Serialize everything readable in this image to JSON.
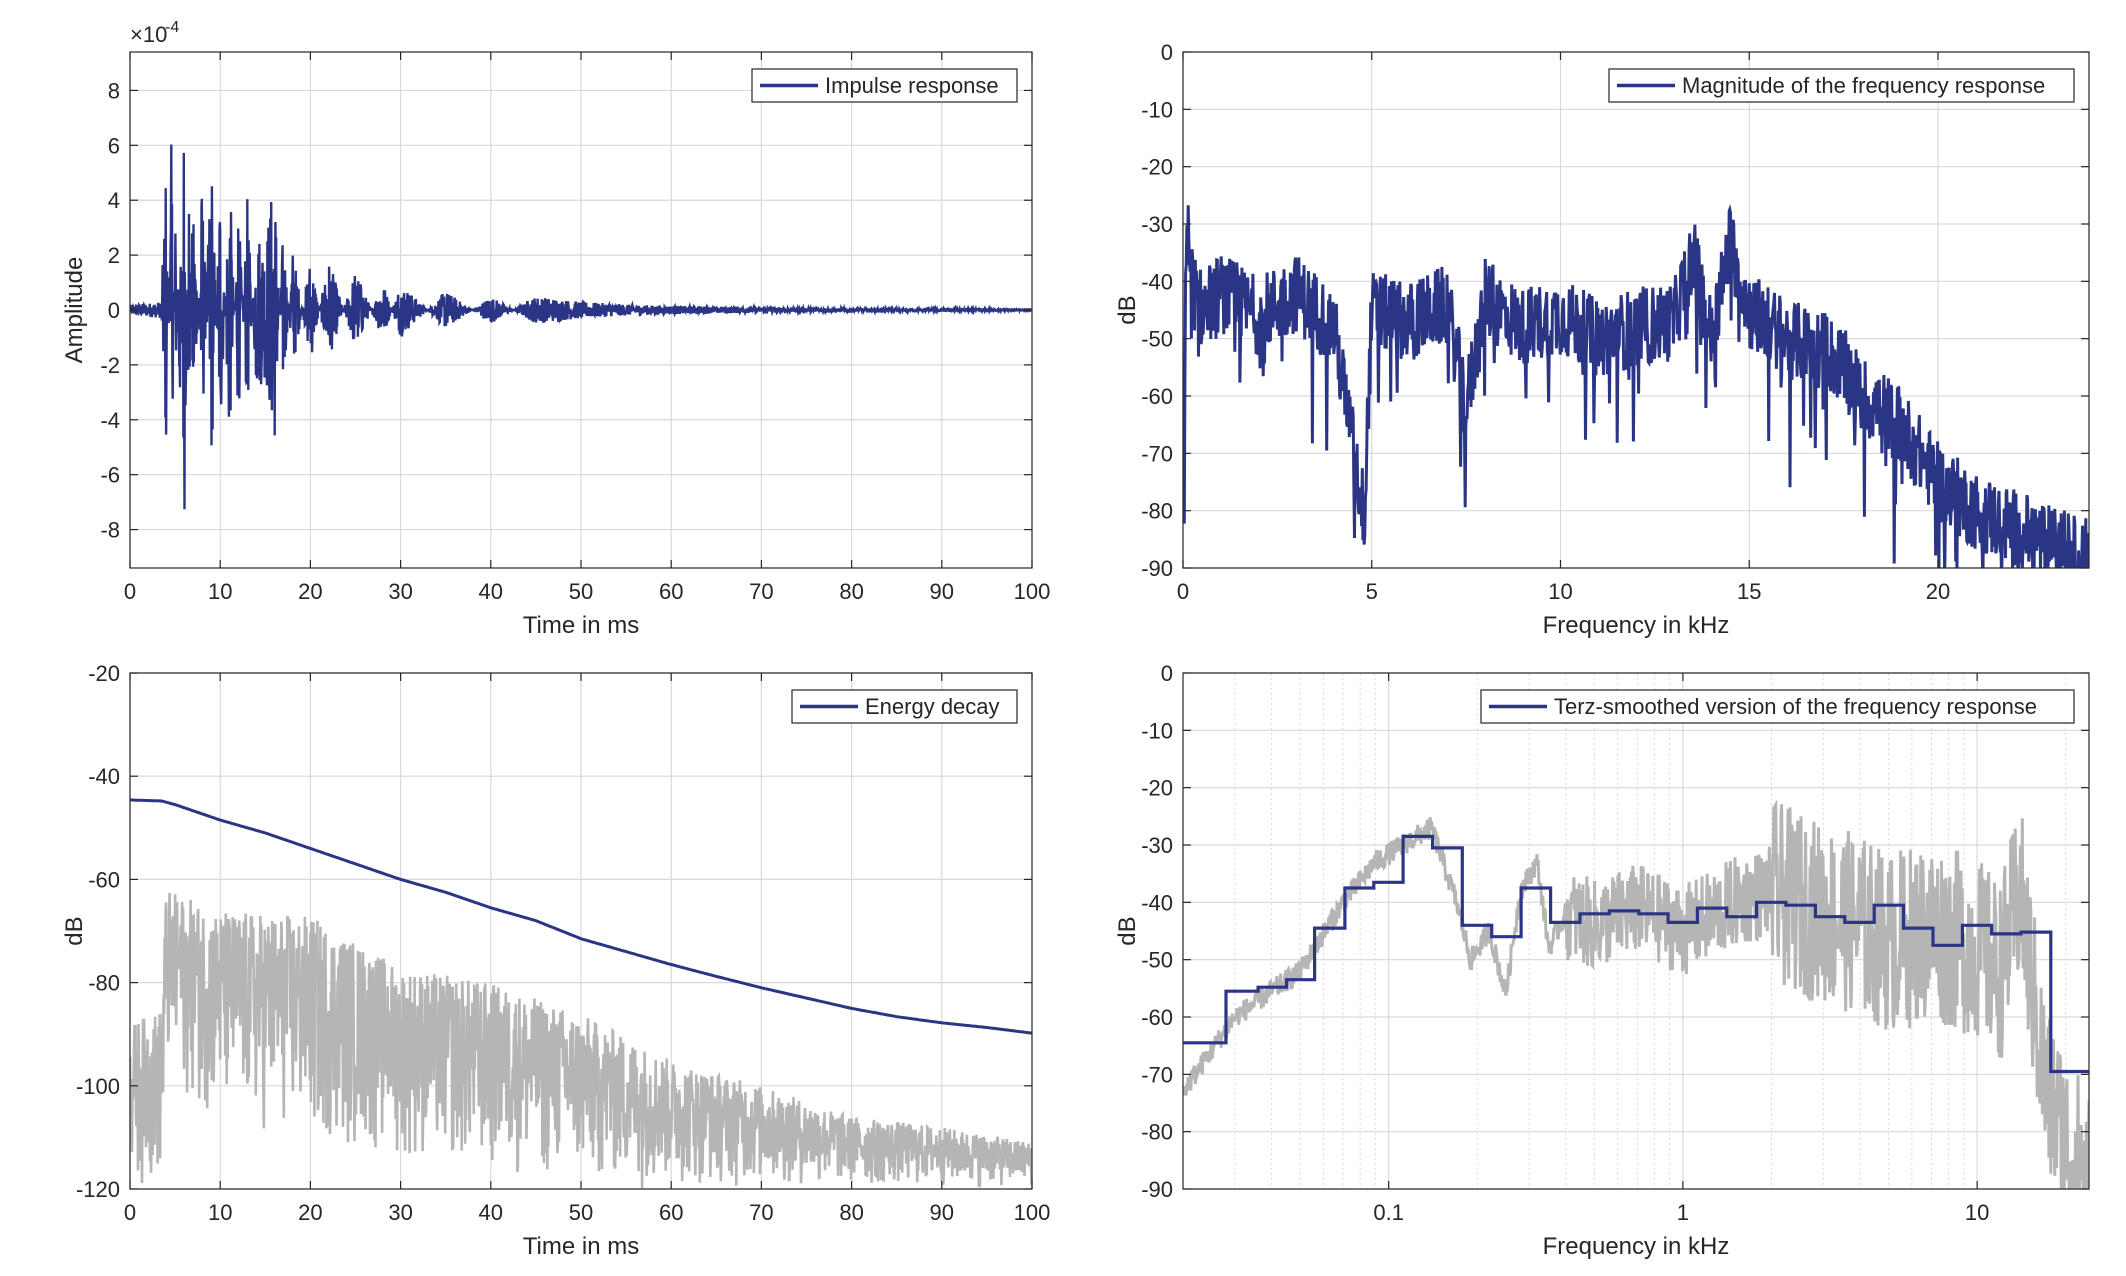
{
  "colors": {
    "primary": "#2b3585",
    "secondary": "#b5b5b5",
    "grid": "#d9d9d9",
    "axis": "#262626",
    "background": "#ffffff"
  },
  "chart_data": [
    {
      "id": "impulse",
      "type": "line",
      "title": "",
      "xlabel": "Time in ms",
      "ylabel": "Amplitude",
      "y_exponent_label": "×10",
      "y_exponent_power": "-4",
      "xlim": [
        0,
        100
      ],
      "ylim": [
        -9.4,
        9.4
      ],
      "xticks": [
        0,
        10,
        20,
        30,
        40,
        50,
        60,
        70,
        80,
        90,
        100
      ],
      "yticks": [
        -8,
        -6,
        -4,
        -2,
        0,
        2,
        4,
        6,
        8
      ],
      "grid": true,
      "legend_position": "top-right",
      "series": [
        {
          "name": "Impulse response",
          "color": "#2b3585",
          "x": [
            0,
            3.5,
            4.0,
            4.3,
            4.6,
            5.0,
            5.5,
            6.0,
            6.5,
            7.0,
            8.0,
            9.0,
            10.0,
            11.0,
            12.0,
            13.0,
            14.0,
            15.0,
            16.0,
            17.0,
            18.0,
            20.0,
            22.0,
            25.0,
            28.0,
            30.0,
            35.0,
            40.0,
            45.0,
            50.0,
            55.0,
            60.0,
            70.0,
            80.0,
            90.0,
            100.0
          ],
          "y": [
            0.3,
            0.5,
            5.5,
            -2.8,
            6.8,
            -4.0,
            4.7,
            -8.4,
            4.9,
            -5.3,
            5.1,
            -6.4,
            5.4,
            -5.5,
            4.2,
            -4.1,
            3.1,
            2.5,
            5.2,
            -3.2,
            2.4,
            -2.0,
            1.9,
            -1.5,
            1.1,
            -1.0,
            0.7,
            -0.5,
            0.5,
            0.3,
            0.2,
            0.15,
            0.1,
            0.06,
            0.04,
            0.02
          ],
          "envelope_note": ""
        }
      ]
    },
    {
      "id": "magnitude",
      "type": "line",
      "title": "",
      "xlabel": "Frequency in kHz",
      "ylabel": "dB",
      "xlim": [
        0,
        24
      ],
      "ylim": [
        -90,
        0
      ],
      "xticks": [
        0,
        5,
        10,
        15,
        20
      ],
      "yticks": [
        0,
        -10,
        -20,
        -30,
        -40,
        -50,
        -60,
        -70,
        -80,
        -90
      ],
      "grid": true,
      "legend_position": "top-right",
      "series": [
        {
          "name": "Magnitude of the frequency response",
          "color": "#2b3585",
          "x": [
            0,
            0.1,
            0.2,
            0.5,
            1,
            2,
            3,
            4,
            4.8,
            5,
            6,
            7,
            7.5,
            8,
            9,
            10,
            11,
            12,
            13,
            13.5,
            14,
            14.5,
            15,
            16,
            17,
            17.5,
            18,
            19,
            20,
            21,
            22,
            23,
            24
          ],
          "y": [
            -82,
            -28,
            -40,
            -45,
            -42,
            -46,
            -42,
            -48,
            -81,
            -45,
            -47,
            -44,
            -62,
            -43,
            -48,
            -46,
            -50,
            -48,
            -47,
            -35,
            -50,
            -33,
            -45,
            -50,
            -52,
            -55,
            -60,
            -65,
            -75,
            -80,
            -83,
            -86,
            -88
          ]
        }
      ]
    },
    {
      "id": "energy",
      "type": "line",
      "title": "",
      "xlabel": "Time in ms",
      "ylabel": "dB",
      "xlim": [
        0,
        100
      ],
      "ylim": [
        -120,
        -20
      ],
      "xticks": [
        0,
        10,
        20,
        30,
        40,
        50,
        60,
        70,
        80,
        90,
        100
      ],
      "yticks": [
        -20,
        -40,
        -60,
        -80,
        -100,
        -120
      ],
      "grid": true,
      "legend_position": "top-right",
      "series": [
        {
          "name": "Energy decay",
          "color": "#2b3585",
          "x": [
            0,
            3.5,
            5,
            10,
            15,
            20,
            25,
            30,
            35,
            40,
            45,
            50,
            55,
            60,
            65,
            70,
            75,
            80,
            85,
            90,
            95,
            100
          ],
          "y": [
            -44.6,
            -44.8,
            -45.5,
            -48.5,
            -51.0,
            -54.0,
            -57.0,
            -60.0,
            -62.5,
            -65.5,
            -68.0,
            -71.5,
            -74.0,
            -76.5,
            -78.8,
            -81.0,
            -83.0,
            -85.0,
            -86.6,
            -87.8,
            -88.7,
            -89.8
          ]
        },
        {
          "name": "",
          "color": "#b5b5b5",
          "x": [
            0,
            3.5,
            4,
            10,
            20,
            30,
            40,
            50,
            60,
            70,
            80,
            90,
            100
          ],
          "y_top": [
            -88,
            -85,
            -62,
            -66,
            -67,
            -77,
            -80,
            -86,
            -95,
            -100,
            -106,
            -108,
            -111
          ],
          "y_bottom": [
            -120,
            -120,
            -100,
            -108,
            -112,
            -115,
            -118,
            -120,
            -120,
            -120,
            -120,
            -120,
            -120
          ]
        }
      ]
    },
    {
      "id": "terz",
      "type": "line",
      "title": "",
      "xlabel": "Frequency in kHz",
      "ylabel": "dB",
      "xscale": "log",
      "xlim": [
        0.02,
        24
      ],
      "ylim": [
        -90,
        0
      ],
      "xticks": [
        0.1,
        1,
        10
      ],
      "xticklabels": [
        "0.1",
        "1",
        "10"
      ],
      "yticks": [
        0,
        -10,
        -20,
        -30,
        -40,
        -50,
        -60,
        -70,
        -80,
        -90
      ],
      "grid": true,
      "legend_position": "top-right",
      "series": [
        {
          "name": "Terz-smoothed version of the frequency response",
          "color": "#2b3585",
          "type": "step",
          "edges": [
            0.02,
            0.028,
            0.036,
            0.045,
            0.056,
            0.071,
            0.089,
            0.112,
            0.141,
            0.178,
            0.224,
            0.282,
            0.355,
            0.447,
            0.562,
            0.708,
            0.891,
            1.12,
            1.41,
            1.78,
            2.24,
            2.82,
            3.55,
            4.47,
            5.62,
            7.08,
            8.91,
            11.2,
            14.1,
            17.8,
            24
          ],
          "values": [
            -64.5,
            -55.5,
            -54.8,
            -53.5,
            -44.5,
            -37.5,
            -36.5,
            -28.5,
            -30.5,
            -44,
            -46,
            -37.5,
            -43.5,
            -42,
            -41.5,
            -42,
            -43.5,
            -41,
            -42.5,
            -40,
            -40.5,
            -42.5,
            -43.5,
            -40.5,
            -44.5,
            -47.5,
            -44,
            -45.5,
            -45.2,
            -69.5
          ]
        },
        {
          "name": "",
          "color": "#b5b5b5",
          "x": [
            0.02,
            0.03,
            0.05,
            0.07,
            0.09,
            0.12,
            0.14,
            0.17,
            0.19,
            0.22,
            0.25,
            0.28,
            0.32,
            0.35,
            0.4,
            0.5,
            0.7,
            1,
            1.5,
            2,
            3,
            4,
            5,
            7,
            10,
            12,
            14,
            17,
            20,
            24
          ],
          "y": [
            -73,
            -60,
            -52,
            -40,
            -33,
            -29,
            -27,
            -40,
            -50,
            -45,
            -56,
            -38,
            -33,
            -48,
            -42,
            -44,
            -41,
            -45,
            -40,
            -38,
            -42,
            -44,
            -47,
            -45,
            -48,
            -52,
            -38,
            -72,
            -82,
            -88
          ]
        }
      ]
    }
  ]
}
